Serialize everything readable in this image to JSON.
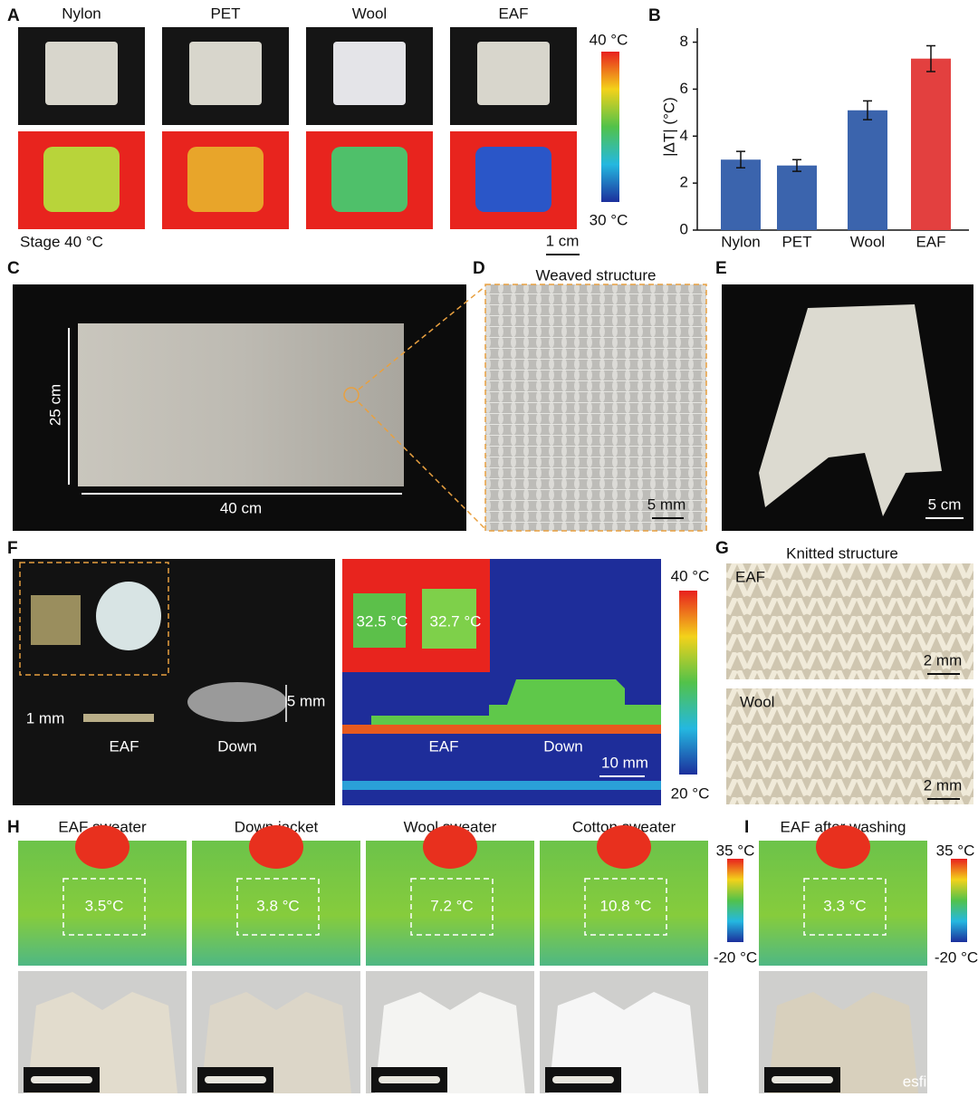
{
  "panels": {
    "a": {
      "label": "A",
      "samples": [
        "Nylon",
        "PET",
        "Wool",
        "EAF"
      ],
      "colorbar_max": "40 °C",
      "colorbar_min": "30 °C",
      "stage": "Stage  40 °C",
      "scale_bar": "1 cm"
    },
    "c": {
      "label": "C",
      "height": "25 cm",
      "width": "40 cm"
    },
    "d": {
      "label": "D",
      "title": "Weaved structure",
      "scale_bar": "5 mm"
    },
    "e": {
      "label": "E",
      "scale_bar": "5 cm"
    },
    "f": {
      "label": "F",
      "eaf_thickness": "1 mm",
      "down_thickness": "5 mm",
      "photo_labels": [
        "EAF",
        "Down"
      ],
      "inset_temps": [
        "32.5 °C",
        "32.7 °C"
      ],
      "thermal_labels": [
        "EAF",
        "Down"
      ],
      "scale_bar": "10 mm",
      "colorbar_max": "40 °C",
      "colorbar_min": "20 °C"
    },
    "g": {
      "label": "G",
      "title": "Knitted structure",
      "rows": [
        {
          "name": "EAF",
          "scale_bar": "2 mm"
        },
        {
          "name": "Wool",
          "scale_bar": "2 mm"
        }
      ]
    },
    "h": {
      "label": "H",
      "items": [
        {
          "name": "EAF sweater",
          "delta": "3.5°C"
        },
        {
          "name": "Down jacket",
          "delta": "3.8 °C"
        },
        {
          "name": "Wool sweater",
          "delta": "7.2 °C"
        },
        {
          "name": "Cotton sweater",
          "delta": "10.8 °C"
        }
      ],
      "colorbar_max": "35 °C",
      "colorbar_min": "-20 °C"
    },
    "i": {
      "label": "I",
      "title": "EAF after washing",
      "delta": "3.3 °C",
      "colorbar_max": "35 °C",
      "colorbar_min": "-20 °C"
    }
  },
  "chart_data": {
    "type": "bar",
    "label": "B",
    "ylabel": "|ΔT| (°C)",
    "categories": [
      "Nylon",
      "PET",
      "Wool",
      "EAF"
    ],
    "values": [
      3.0,
      2.75,
      5.1,
      7.3
    ],
    "errors": [
      0.35,
      0.25,
      0.4,
      0.55
    ],
    "colors": [
      "#3b64ad",
      "#3b64ad",
      "#3b64ad",
      "#e3403f"
    ],
    "ylim": [
      0,
      8.6
    ],
    "yticks": [
      0,
      2,
      4,
      6,
      8
    ]
  },
  "watermark": "esfi"
}
